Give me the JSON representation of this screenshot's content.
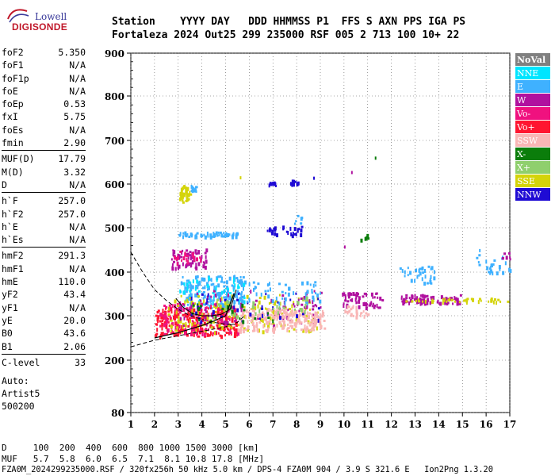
{
  "logo": {
    "line1": "Lowell",
    "line2": "DIGISONDE"
  },
  "header": {
    "row1": "Station    YYYY DAY   DDD HHMMSS P1  FFS S AXN PPS IGA PS",
    "row2": "Fortaleza 2024 Out25 299 235000 RSF 005 2 713 100 10+ 22"
  },
  "params": [
    {
      "label": "foF2",
      "value": "5.350"
    },
    {
      "label": "foF1",
      "value": "N/A"
    },
    {
      "label": "foF1p",
      "value": "N/A"
    },
    {
      "label": "foE",
      "value": "N/A"
    },
    {
      "label": "foEp",
      "value": "0.53"
    },
    {
      "label": "fxI",
      "value": "5.75"
    },
    {
      "label": "foEs",
      "value": "N/A"
    },
    {
      "label": "fmin",
      "value": "2.90"
    },
    {
      "label": "MUF(D)",
      "value": "17.79"
    },
    {
      "label": "M(D)",
      "value": "3.32"
    },
    {
      "label": "D",
      "value": "N/A"
    },
    {
      "label": "h`F",
      "value": "257.0"
    },
    {
      "label": "h`F2",
      "value": "257.0"
    },
    {
      "label": "h`E",
      "value": "N/A"
    },
    {
      "label": "h`Es",
      "value": "N/A"
    },
    {
      "label": "hmF2",
      "value": "291.3"
    },
    {
      "label": "hmF1",
      "value": "N/A"
    },
    {
      "label": "hmE",
      "value": "110.0"
    },
    {
      "label": "yF2",
      "value": "43.4"
    },
    {
      "label": "yF1",
      "value": "N/A"
    },
    {
      "label": "yE",
      "value": "20.0"
    },
    {
      "label": "B0",
      "value": "43.6"
    },
    {
      "label": "B1",
      "value": "2.06"
    },
    {
      "label": "C-level",
      "value": "33"
    }
  ],
  "auto": {
    "line1": "Auto:",
    "line2": "Artist5",
    "line3": "500200"
  },
  "bottom": {
    "row1": "D     100  200  400  600  800 1000 1500 3000 [km]",
    "row2": "MUF   5.7  5.8  6.0  6.5  7.1  8.1 10.8 17.8 [MHz]",
    "row3": "FZA0M_2024299235000.RSF / 320fx256h 50 kHz 5.0 km / DPS-4 FZA0M 904 / 3.9 S 321.6 E   Ion2Png 1.3.20"
  },
  "chart_data": {
    "type": "scatter",
    "xlim": [
      1,
      17
    ],
    "ylim": [
      80,
      900
    ],
    "x_ticks": [
      1,
      2,
      3,
      4,
      5,
      6,
      7,
      8,
      9,
      10,
      11,
      12,
      13,
      14,
      15,
      16,
      17
    ],
    "y_ticks": [
      80,
      200,
      300,
      400,
      500,
      600,
      700,
      800,
      900
    ],
    "legend_position": "right",
    "legend": [
      {
        "name": "NoVal",
        "color": "#808080"
      },
      {
        "name": "NNE",
        "color": "#00e5ff"
      },
      {
        "name": "E",
        "color": "#3fb1ff"
      },
      {
        "name": "W",
        "color": "#b0119f"
      },
      {
        "name": "Vo-",
        "color": "#f0117f"
      },
      {
        "name": "Vo+",
        "color": "#ff1530"
      },
      {
        "name": "SSW",
        "color": "#f9b6b6"
      },
      {
        "name": "X-",
        "color": "#0b7d0b"
      },
      {
        "name": "X+",
        "color": "#8fcf6d"
      },
      {
        "name": "SSE",
        "color": "#d4d40a"
      },
      {
        "name": "NNW",
        "color": "#1f0bd4"
      }
    ],
    "clusters": [
      {
        "series": "SSE",
        "x": [
          3.0,
          3.5
        ],
        "y": [
          560,
          600
        ],
        "n": 40
      },
      {
        "series": "E",
        "x": [
          3.5,
          3.8
        ],
        "y": [
          585,
          600
        ],
        "n": 12
      },
      {
        "series": "NNW",
        "x": [
          6.8,
          7.1
        ],
        "y": [
          598,
          606
        ],
        "n": 10
      },
      {
        "series": "NNW",
        "x": [
          7.7,
          8.1
        ],
        "y": [
          602,
          611
        ],
        "n": 10
      },
      {
        "series": "E",
        "x": [
          3.0,
          5.5
        ],
        "y": [
          482,
          492
        ],
        "n": 60
      },
      {
        "series": "NNW",
        "x": [
          6.6,
          8.2
        ],
        "y": [
          485,
          505
        ],
        "n": 30
      },
      {
        "series": "E",
        "x": [
          7.8,
          8.2
        ],
        "y": [
          510,
          530
        ],
        "n": 6
      },
      {
        "series": "X-",
        "x": [
          10.6,
          11.0
        ],
        "y": [
          475,
          490
        ],
        "n": 6
      },
      {
        "series": "W",
        "x": [
          2.7,
          4.2
        ],
        "y": [
          410,
          455
        ],
        "n": 70
      },
      {
        "series": "Vo-",
        "x": [
          2.8,
          4.0
        ],
        "y": [
          420,
          450
        ],
        "n": 20
      },
      {
        "series": "E",
        "x": [
          3.0,
          5.8
        ],
        "y": [
          320,
          395
        ],
        "n": 200
      },
      {
        "series": "NNE",
        "x": [
          3.0,
          5.8
        ],
        "y": [
          330,
          390
        ],
        "n": 40
      },
      {
        "series": "Vo+",
        "x": [
          2.0,
          5.5
        ],
        "y": [
          255,
          320
        ],
        "n": 260
      },
      {
        "series": "Vo-",
        "x": [
          2.2,
          5.5
        ],
        "y": [
          260,
          330
        ],
        "n": 120
      },
      {
        "series": "SSE",
        "x": [
          2.5,
          9.0
        ],
        "y": [
          265,
          350
        ],
        "n": 150
      },
      {
        "series": "W",
        "x": [
          3.0,
          9.0
        ],
        "y": [
          280,
          360
        ],
        "n": 90
      },
      {
        "series": "SSW",
        "x": [
          5.5,
          9.2
        ],
        "y": [
          268,
          318
        ],
        "n": 220
      },
      {
        "series": "NNW",
        "x": [
          3.5,
          9.0
        ],
        "y": [
          290,
          355
        ],
        "n": 40
      },
      {
        "series": "E",
        "x": [
          5.6,
          9.0
        ],
        "y": [
          330,
          380
        ],
        "n": 60
      },
      {
        "series": "X+",
        "x": [
          4.0,
          8.5
        ],
        "y": [
          300,
          345
        ],
        "n": 30
      },
      {
        "series": "X-",
        "x": [
          3.5,
          7.0
        ],
        "y": [
          290,
          330
        ],
        "n": 20
      },
      {
        "series": "W",
        "x": [
          9.9,
          11.6
        ],
        "y": [
          320,
          355
        ],
        "n": 60
      },
      {
        "series": "SSW",
        "x": [
          10.0,
          11.0
        ],
        "y": [
          300,
          325
        ],
        "n": 25
      },
      {
        "series": "E",
        "x": [
          12.3,
          13.8
        ],
        "y": [
          375,
          415
        ],
        "n": 35
      },
      {
        "series": "W",
        "x": [
          12.4,
          15.0
        ],
        "y": [
          330,
          350
        ],
        "n": 80
      },
      {
        "series": "SSE",
        "x": [
          12.5,
          17.0
        ],
        "y": [
          334,
          342
        ],
        "n": 40
      },
      {
        "series": "E",
        "x": [
          15.5,
          17.0
        ],
        "y": [
          400,
          445
        ],
        "n": 25
      },
      {
        "series": "W",
        "x": [
          16.6,
          17.0
        ],
        "y": [
          420,
          445
        ],
        "n": 8
      }
    ],
    "profile_curve": {
      "x": [
        2.0,
        2.5,
        3.0,
        3.5,
        4.0,
        4.5,
        5.0,
        5.35
      ],
      "y": [
        250,
        256,
        262,
        270,
        278,
        288,
        300,
        350
      ]
    },
    "trace_curve": {
      "x": [
        2.9,
        3.2,
        3.6,
        4.0,
        4.4,
        4.8,
        5.2,
        5.45
      ],
      "y": [
        340,
        320,
        305,
        300,
        300,
        303,
        315,
        360
      ]
    },
    "dashed_upper": {
      "x": [
        1.0,
        1.5,
        2.0,
        2.5,
        3.0,
        3.5,
        4.0,
        4.5,
        5.0,
        5.4
      ],
      "y": [
        445,
        400,
        360,
        335,
        315,
        300,
        292,
        285,
        281,
        280
      ]
    },
    "dashed_lower": {
      "x": [
        1.0,
        2.0,
        3.0,
        4.0,
        5.0,
        5.5,
        5.8
      ],
      "y": [
        230,
        245,
        255,
        265,
        275,
        285,
        300
      ]
    },
    "outliers": [
      {
        "series": "X-",
        "x": 11.3,
        "y": 663
      },
      {
        "series": "W",
        "x": 10.3,
        "y": 630
      },
      {
        "series": "SSE",
        "x": 5.6,
        "y": 618
      },
      {
        "series": "NNW",
        "x": 8.7,
        "y": 617
      },
      {
        "series": "W",
        "x": 10.0,
        "y": 460
      },
      {
        "series": "E",
        "x": 15.7,
        "y": 452
      }
    ]
  }
}
